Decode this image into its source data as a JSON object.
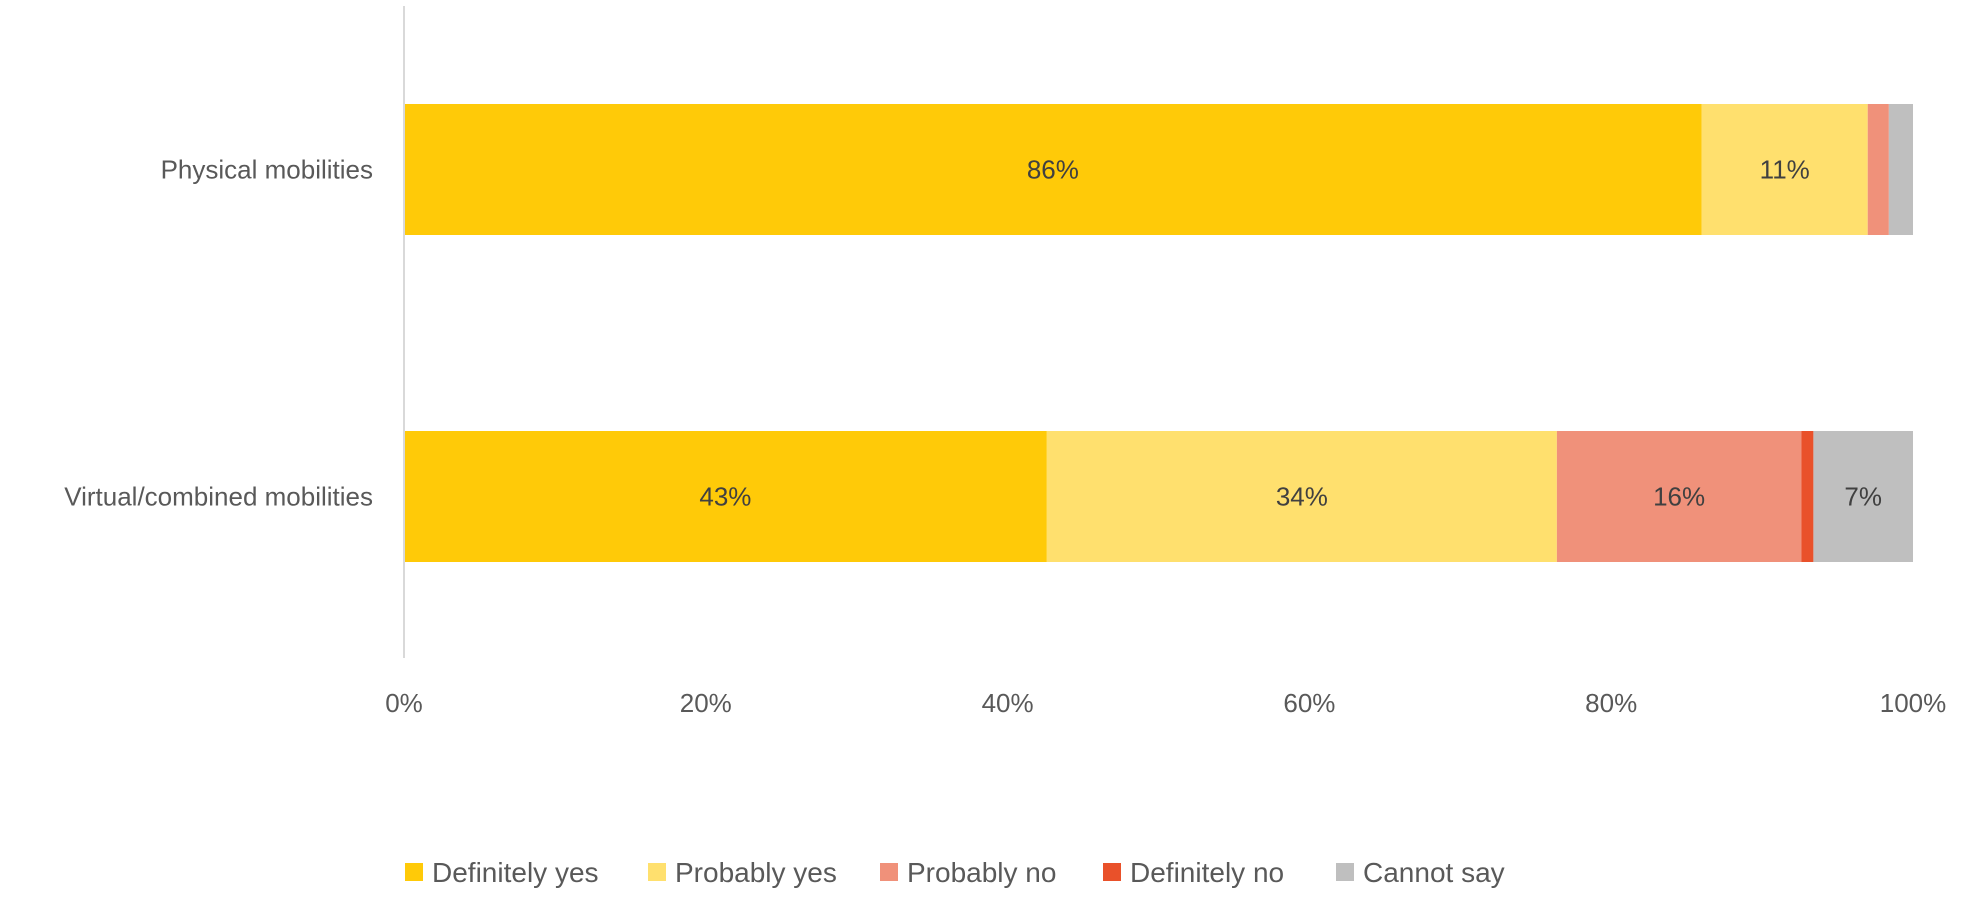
{
  "chart_data": {
    "type": "bar",
    "orientation": "horizontal",
    "stacked": "percent",
    "categories": [
      "Physical mobilities",
      "Virtual/combined mobilities"
    ],
    "series": [
      {
        "name": "Definitely yes",
        "color": "#FFCA08",
        "values": [
          86,
          42.6
        ],
        "labels": [
          "86%",
          "43%"
        ]
      },
      {
        "name": "Probably yes",
        "color": "#FFE06E",
        "values": [
          11,
          33.8
        ],
        "labels": [
          "11%",
          "34%"
        ]
      },
      {
        "name": "Probably no",
        "color": "#F0917A",
        "values": [
          1.4,
          16.2
        ],
        "labels": [
          "",
          "16%"
        ]
      },
      {
        "name": "Definitely no",
        "color": "#E9512A",
        "values": [
          0,
          0.8
        ],
        "labels": [
          "",
          ""
        ]
      },
      {
        "name": "Cannot say",
        "color": "#BFBFBF",
        "values": [
          1.6,
          6.6
        ],
        "labels": [
          "",
          "7%"
        ]
      }
    ],
    "x_ticks": [
      "0%",
      "20%",
      "40%",
      "60%",
      "80%",
      "100%"
    ],
    "xlim": [
      0,
      100
    ],
    "grid": false,
    "legend_position": "bottom",
    "title": "",
    "xlabel": "",
    "ylabel": ""
  }
}
